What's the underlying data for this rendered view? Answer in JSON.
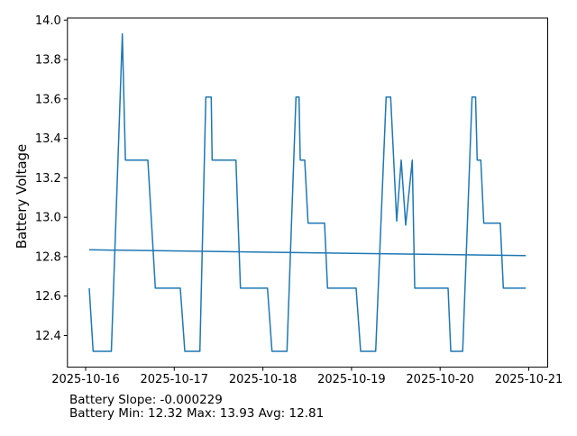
{
  "figure": {
    "background": "#ffffff",
    "spine_color": "#000000",
    "text_color": "#000000"
  },
  "chart_data": {
    "type": "line",
    "title": "",
    "xlabel": "",
    "ylabel": "Battery Voltage",
    "ylabel_color": "#1f77b4",
    "line_color": "#1f77b4",
    "grid": false,
    "legend": false,
    "x_unit": "days since 2025-10-16",
    "xlim_days": [
      -0.206,
      5.214
    ],
    "ylim": [
      12.2395,
      14.0105
    ],
    "x_ticks": [
      {
        "day": 0,
        "label": "2025-10-16"
      },
      {
        "day": 1,
        "label": "2025-10-17"
      },
      {
        "day": 2,
        "label": "2025-10-18"
      },
      {
        "day": 3,
        "label": "2025-10-19"
      },
      {
        "day": 4,
        "label": "2025-10-20"
      },
      {
        "day": 5,
        "label": "2025-10-21"
      }
    ],
    "y_ticks": [
      {
        "v": 12.4,
        "label": "12.4"
      },
      {
        "v": 12.6,
        "label": "12.6"
      },
      {
        "v": 12.8,
        "label": "12.8"
      },
      {
        "v": 13.0,
        "label": "13.0"
      },
      {
        "v": 13.2,
        "label": "13.2"
      },
      {
        "v": 13.4,
        "label": "13.4"
      },
      {
        "v": 13.6,
        "label": "13.6"
      },
      {
        "v": 13.8,
        "label": "13.8"
      }
    ],
    "y_tick_top": {
      "v": 14.0,
      "label": "14.0"
    },
    "series": [
      {
        "name": "battery_voltage",
        "color": "#1f77b4",
        "width": 1.5,
        "points": [
          [
            0.04,
            12.64
          ],
          [
            0.084,
            12.32
          ],
          [
            0.29,
            12.32
          ],
          [
            0.414,
            13.93
          ],
          [
            0.448,
            13.29
          ],
          [
            0.702,
            13.29
          ],
          [
            0.786,
            12.64
          ],
          [
            1.068,
            12.64
          ],
          [
            1.119,
            12.32
          ],
          [
            1.289,
            12.32
          ],
          [
            1.356,
            13.61
          ],
          [
            1.417,
            13.61
          ],
          [
            1.427,
            13.29
          ],
          [
            1.696,
            13.29
          ],
          [
            1.747,
            12.64
          ],
          [
            2.052,
            12.64
          ],
          [
            2.103,
            12.32
          ],
          [
            2.272,
            12.32
          ],
          [
            2.373,
            13.61
          ],
          [
            2.408,
            13.61
          ],
          [
            2.421,
            13.29
          ],
          [
            2.472,
            13.29
          ],
          [
            2.51,
            12.97
          ],
          [
            2.696,
            12.97
          ],
          [
            2.729,
            12.64
          ],
          [
            3.052,
            12.64
          ],
          [
            3.103,
            12.32
          ],
          [
            3.273,
            12.32
          ],
          [
            3.391,
            13.61
          ],
          [
            3.442,
            13.61
          ],
          [
            3.51,
            12.98
          ],
          [
            3.561,
            13.29
          ],
          [
            3.612,
            12.96
          ],
          [
            3.686,
            13.29
          ],
          [
            3.713,
            12.64
          ],
          [
            4.09,
            12.64
          ],
          [
            4.12,
            12.32
          ],
          [
            4.255,
            12.32
          ],
          [
            4.36,
            13.61
          ],
          [
            4.4,
            13.61
          ],
          [
            4.418,
            13.29
          ],
          [
            4.459,
            13.29
          ],
          [
            4.493,
            12.97
          ],
          [
            4.679,
            12.97
          ],
          [
            4.713,
            12.64
          ],
          [
            4.967,
            12.64
          ]
        ]
      },
      {
        "name": "battery_trend",
        "color": "#1f77b4",
        "width": 1.5,
        "points": [
          [
            0.04,
            12.835
          ],
          [
            4.967,
            12.805
          ]
        ]
      }
    ]
  },
  "footer": {
    "line1": "Battery Slope: -0.000229",
    "line2": "Battery Min: 12.32 Max: 13.93 Avg: 12.81"
  },
  "stats_visible_in_text": {
    "slope": "-0.000229",
    "min": "12.32",
    "max": "13.93",
    "avg": "12.81"
  }
}
